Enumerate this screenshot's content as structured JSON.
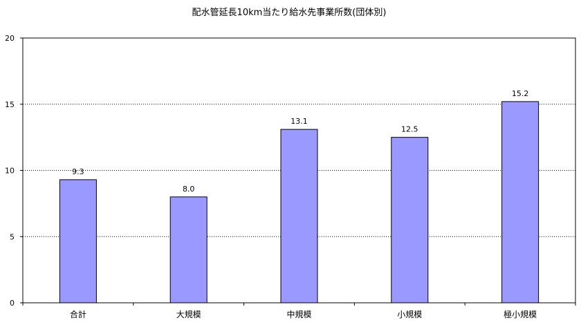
{
  "chart_data": {
    "type": "bar",
    "title": "配水管延長10km当たり給水先事業所数(団体別)",
    "xlabel": "",
    "ylabel": "",
    "categories": [
      "合計",
      "大規模",
      "中規模",
      "小規模",
      "極小規模"
    ],
    "values": [
      9.3,
      8.0,
      13.1,
      12.5,
      15.2
    ],
    "value_labels": [
      "9.3",
      "8.0",
      "13.1",
      "12.5",
      "15.2"
    ],
    "ylim": [
      0,
      20
    ],
    "yticks": [
      0,
      5,
      10,
      15,
      20
    ],
    "ytick_labels": [
      "0",
      "5",
      "10",
      "15",
      "20"
    ],
    "grid": "horizontal dotted",
    "legend": "none",
    "colors": {
      "bar_fill": "#9999ff",
      "bar_stroke": "#000000",
      "grid": "#000000",
      "axis": "#000000"
    }
  }
}
